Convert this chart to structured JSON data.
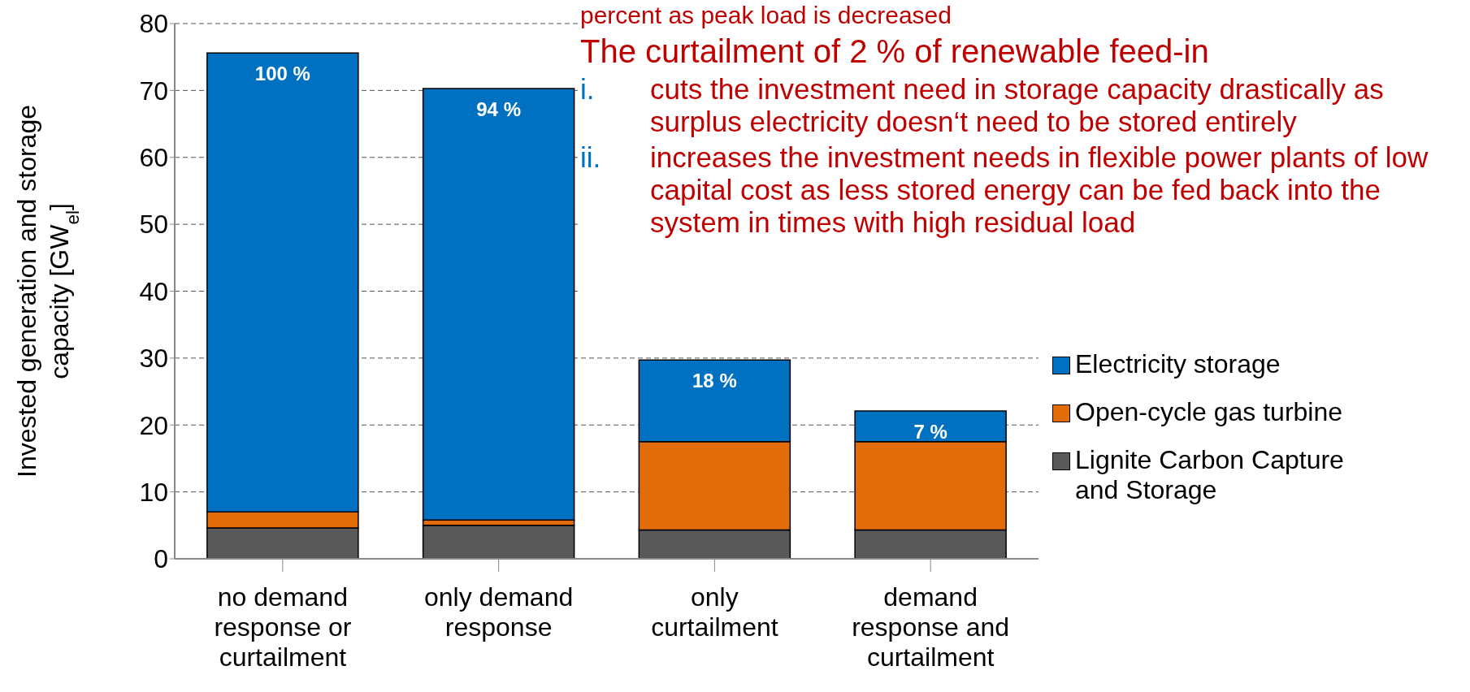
{
  "chart_data": {
    "type": "bar",
    "stacked": true,
    "ylabel": "Invested generation and storage capacity [GW$_{el}$]",
    "categories": [
      "no demand response or curtailment",
      "only demand response",
      "only curtailment",
      "demand response and curtailment"
    ],
    "series": [
      {
        "name": "Lignite Carbon Capture and Storage",
        "color": "#595959",
        "values": [
          4.6,
          5.0,
          4.3,
          4.3
        ]
      },
      {
        "name": "Open-cycle gas turbine",
        "color": "#e36c0a",
        "values": [
          2.4,
          0.8,
          13.2,
          13.2
        ]
      },
      {
        "name": "Electricity storage",
        "color": "#0070c0",
        "values": [
          68.6,
          64.5,
          12.2,
          4.6
        ]
      }
    ],
    "ylim": [
      0,
      80
    ],
    "yticks": [
      0,
      10,
      20,
      30,
      40,
      50,
      60,
      70,
      80
    ],
    "grid": "y",
    "legend": "right",
    "annotations": [
      "percent as peak load is decreased",
      "The curtailment of 2 % of renewable feed-in",
      "i.",
      "cuts the investment need in storage capacity drastically as surplus electricity doesn‘t need to be stored entirely",
      "ii.",
      "increases the investment needs in flexible power plants of low capital cost as less stored energy can be fed back into the system in times with high residual load",
      {
        "text": "100 %",
        "x": "no demand response or curtailment",
        "y": 75.6
      },
      {
        "text": "94 %",
        "x": "only demand response",
        "y": 70.3
      },
      {
        "text": "18 %",
        "x": "only curtailment",
        "y": 29.7
      },
      {
        "text": "7 %",
        "x": "demand response and curtailment",
        "y": 22.1
      }
    ]
  }
}
